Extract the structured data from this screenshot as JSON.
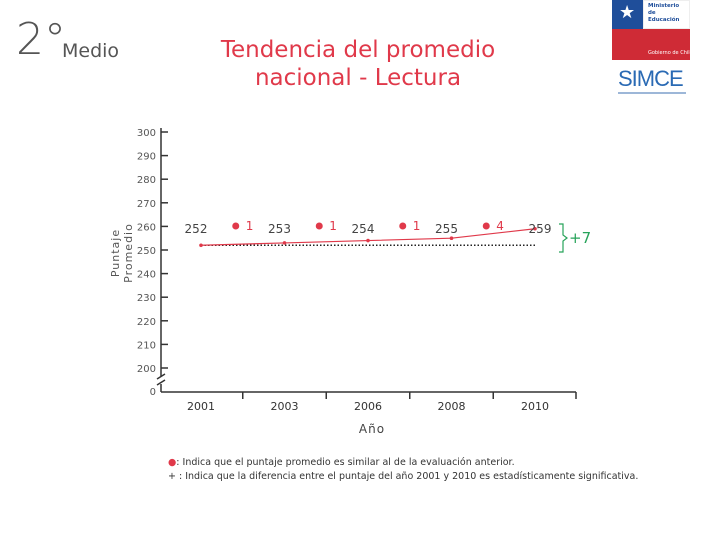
{
  "header": {
    "grade_number": "2°",
    "grade_word": "Medio",
    "title_line1": "Tendencia del promedio",
    "title_line2": "nacional - Lectura"
  },
  "logo": {
    "ministry_line1": "Ministerio de",
    "ministry_line2": "Educación",
    "government": "Gobierno de Chile",
    "brand": "SIMCE"
  },
  "chart_data": {
    "type": "line",
    "title": "Tendencia del promedio nacional - Lectura",
    "xlabel": "Año",
    "ylabel": "Puntaje Promedio",
    "ylim": [
      200,
      300
    ],
    "y_ticks": [
      "300",
      "290",
      "280",
      "270",
      "260",
      "250",
      "240",
      "230",
      "220",
      "210",
      "200"
    ],
    "y_break_label": "0",
    "categories": [
      "2001",
      "2003",
      "2006",
      "2008",
      "2010"
    ],
    "values": [
      252,
      253,
      254,
      255,
      259
    ],
    "differences": [
      {
        "between": [
          "2001",
          "2003"
        ],
        "label": "1"
      },
      {
        "between": [
          "2003",
          "2006"
        ],
        "label": "1"
      },
      {
        "between": [
          "2006",
          "2008"
        ],
        "label": "1"
      },
      {
        "between": [
          "2008",
          "2010"
        ],
        "label": "4"
      }
    ],
    "total_change": "+7",
    "reference_value": 252,
    "line_color": "#e0394a"
  },
  "legend": {
    "dot_symbol": "●",
    "dot_text": ": Indica que el puntaje promedio es similar al de la evaluación anterior.",
    "plus_symbol": "+",
    "plus_text": " : Indica que la diferencia entre el puntaje del año 2001 y 2010 es estadísticamente significativa."
  }
}
